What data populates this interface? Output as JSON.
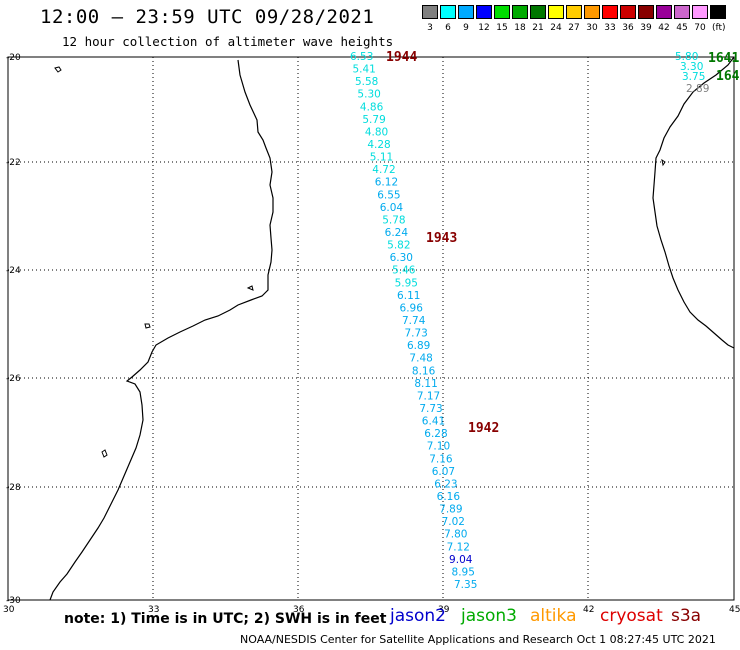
{
  "header": {
    "title": "12:00 — 23:59 UTC 09/28/2021",
    "subtitle": "12 hour collection of altimeter wave heights"
  },
  "scale": {
    "units": "(ft)",
    "bins": [
      {
        "label": "3",
        "color": "#808080"
      },
      {
        "label": "6",
        "color": "#00ffff"
      },
      {
        "label": "9",
        "color": "#00aaff"
      },
      {
        "label": "12",
        "color": "#0000ff"
      },
      {
        "label": "15",
        "color": "#00dd00"
      },
      {
        "label": "18",
        "color": "#00aa00"
      },
      {
        "label": "21",
        "color": "#007700"
      },
      {
        "label": "24",
        "color": "#ffff00"
      },
      {
        "label": "27",
        "color": "#ffcc00"
      },
      {
        "label": "30",
        "color": "#ff9900"
      },
      {
        "label": "33",
        "color": "#ff0000"
      },
      {
        "label": "36",
        "color": "#cc0000"
      },
      {
        "label": "39",
        "color": "#880000"
      },
      {
        "label": "42",
        "color": "#990099"
      },
      {
        "label": "45",
        "color": "#cc66cc"
      },
      {
        "label": "70",
        "color": "#ff99ff"
      },
      {
        "label": "",
        "color": "#000000"
      }
    ]
  },
  "axes": {
    "lat_labels": [
      "-20",
      "-22",
      "-24",
      "-26",
      "-28",
      "-30"
    ],
    "lon_labels": [
      "30",
      "33",
      "36",
      "39",
      "42",
      "45"
    ]
  },
  "passes": [
    {
      "label": "1944",
      "color": "#880000"
    },
    {
      "label": "1943",
      "color": "#880000"
    },
    {
      "label": "1942",
      "color": "#880000"
    },
    {
      "label": "1641",
      "color": "#007700"
    },
    {
      "label": "164",
      "color": "#007700"
    }
  ],
  "observations": [
    {
      "v": "6.53",
      "c": "#00dddd"
    },
    {
      "v": "5.41",
      "c": "#00dddd"
    },
    {
      "v": "5.58",
      "c": "#00dddd"
    },
    {
      "v": "5.30",
      "c": "#00dddd"
    },
    {
      "v": "4.86",
      "c": "#00dddd"
    },
    {
      "v": "5.79",
      "c": "#00dddd"
    },
    {
      "v": "4.80",
      "c": "#00dddd"
    },
    {
      "v": "4.28",
      "c": "#00dddd"
    },
    {
      "v": "5.11",
      "c": "#00dddd"
    },
    {
      "v": "4.72",
      "c": "#00dddd"
    },
    {
      "v": "6.12",
      "c": "#00aaee"
    },
    {
      "v": "6.55",
      "c": "#00aaee"
    },
    {
      "v": "6.04",
      "c": "#00aaee"
    },
    {
      "v": "5.78",
      "c": "#00dddd"
    },
    {
      "v": "6.24",
      "c": "#00aaee"
    },
    {
      "v": "5.82",
      "c": "#00dddd"
    },
    {
      "v": "6.30",
      "c": "#00aaee"
    },
    {
      "v": "5.46",
      "c": "#00dddd"
    },
    {
      "v": "5.95",
      "c": "#00dddd"
    },
    {
      "v": "6.11",
      "c": "#00aaee"
    },
    {
      "v": "6.96",
      "c": "#00aaee"
    },
    {
      "v": "7.74",
      "c": "#00aaee"
    },
    {
      "v": "7.73",
      "c": "#00aaee"
    },
    {
      "v": "6.89",
      "c": "#00aaee"
    },
    {
      "v": "7.48",
      "c": "#00aaee"
    },
    {
      "v": "8.16",
      "c": "#00aaee"
    },
    {
      "v": "8.11",
      "c": "#00aaee"
    },
    {
      "v": "7.17",
      "c": "#00aaee"
    },
    {
      "v": "7.73",
      "c": "#00aaee"
    },
    {
      "v": "6.41",
      "c": "#00aaee"
    },
    {
      "v": "6.28",
      "c": "#00aaee"
    },
    {
      "v": "7.10",
      "c": "#00aaee"
    },
    {
      "v": "7.16",
      "c": "#00aaee"
    },
    {
      "v": "6.07",
      "c": "#00aaee"
    },
    {
      "v": "6.23",
      "c": "#00aaee"
    },
    {
      "v": "6.16",
      "c": "#00aaee"
    },
    {
      "v": "7.89",
      "c": "#00aaee"
    },
    {
      "v": "7.02",
      "c": "#00aaee"
    },
    {
      "v": "7.80",
      "c": "#00aaee"
    },
    {
      "v": "7.12",
      "c": "#00aaee"
    },
    {
      "v": "9.04",
      "c": "#0000cc"
    },
    {
      "v": "8.95",
      "c": "#00aaee"
    },
    {
      "v": "7.35",
      "c": "#00aaee"
    },
    {
      "v": "5.80",
      "c": "#00dddd"
    },
    {
      "v": "3.30",
      "c": "#00dddd"
    },
    {
      "v": "3.75",
      "c": "#00dddd"
    },
    {
      "v": "2.89",
      "c": "#808080"
    }
  ],
  "footer": {
    "note": "note: 1) Time is in UTC; 2) SWH is in feet",
    "satellites": [
      {
        "name": "jason2",
        "color": "#0000cc"
      },
      {
        "name": "jason3",
        "color": "#00aa00"
      },
      {
        "name": "altika",
        "color": "#ff9900"
      },
      {
        "name": "cryosat",
        "color": "#dd0000"
      },
      {
        "name": "s3a",
        "color": "#880000"
      }
    ],
    "credit": "NOAA/NESDIS Center for Satellite Applications and Research    Oct  1 08:27:45 UTC 2021"
  }
}
